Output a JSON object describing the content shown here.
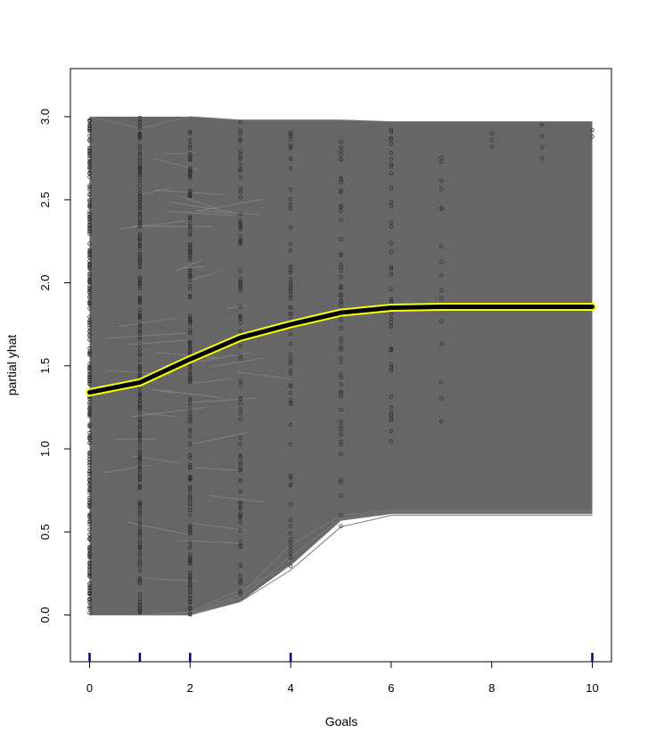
{
  "chart_data": {
    "type": "line",
    "subtype": "ice-plot",
    "title": "",
    "xlabel": "Goals",
    "ylabel": "partial yhat",
    "xlim": [
      0,
      10
    ],
    "ylim": [
      -0.28,
      3.28
    ],
    "x_ticks": [
      0,
      2,
      4,
      6,
      8,
      10
    ],
    "y_ticks": [
      0.0,
      0.5,
      1.0,
      1.5,
      2.0,
      2.5,
      3.0
    ],
    "x_tick_labels": [
      "0",
      "2",
      "4",
      "6",
      "8",
      "10"
    ],
    "y_tick_labels": [
      "0.0",
      "0.5",
      "1.0",
      "1.5",
      "2.0",
      "2.5",
      "3.0"
    ],
    "grid": false,
    "legend": "none",
    "series": [
      {
        "role": "average-pdp",
        "x": [
          0,
          1,
          2,
          3,
          4,
          5,
          6,
          7,
          8,
          9,
          10
        ],
        "values": [
          1.34,
          1.4,
          1.54,
          1.67,
          1.75,
          1.82,
          1.85,
          1.855,
          1.855,
          1.855,
          1.855
        ]
      }
    ],
    "ice_band": {
      "x": [
        0,
        1,
        2,
        3,
        4,
        5,
        6,
        7,
        8,
        9,
        10
      ],
      "upper": [
        3.0,
        3.0,
        3.0,
        2.98,
        2.98,
        2.98,
        2.97,
        2.97,
        2.97,
        2.97,
        2.97
      ],
      "lower": [
        0.0,
        0.0,
        0.0,
        0.08,
        0.3,
        0.57,
        0.61,
        0.61,
        0.61,
        0.61,
        0.61
      ]
    },
    "rug_x": [
      0,
      1,
      2,
      4,
      10
    ],
    "colors": {
      "ice_lines": "#666666",
      "points": "#333333",
      "pdp_line": "#000000",
      "pdp_outline": "#ffff00",
      "rug": "#00008b"
    }
  }
}
